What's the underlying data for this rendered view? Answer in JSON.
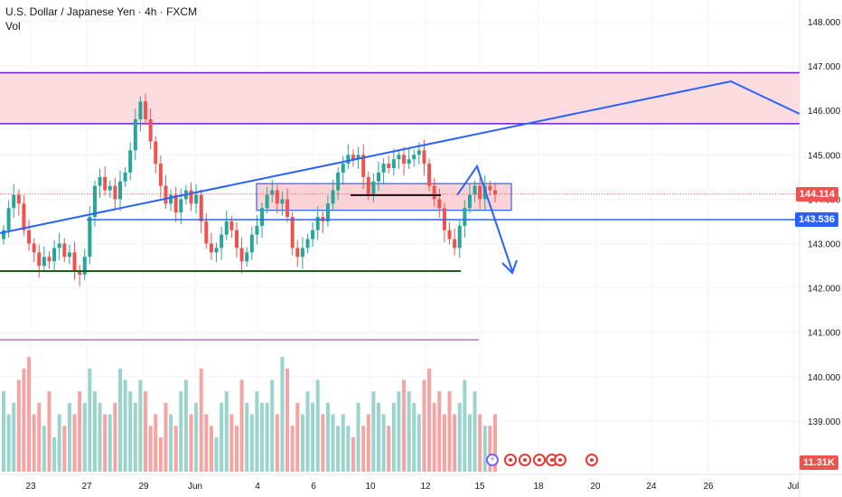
{
  "header": {
    "title": "U.S. Dollar / Japanese Yen · 4h · FXCM",
    "volume_label": "Vol"
  },
  "colors": {
    "up": "#26a69a",
    "down": "#ef5350",
    "up_volume": "#9bd3cd",
    "down_volume": "#f5a3a3",
    "drawing_blue": "#2962ff",
    "zone_fill": "#fbd3d6",
    "zone_border": "#6a1bd8",
    "price_badge": "#ef5350",
    "level_badge": "#2962ff",
    "volume_badge": "#ef5350"
  },
  "price_badges": {
    "last_price": "144.114",
    "support_level": "143.536",
    "volume_value": "11.31K"
  },
  "chart_data": {
    "type": "candlestick",
    "symbol": "USD/JPY",
    "timeframe": "4h",
    "x_ticks": [
      "23",
      "27",
      "29",
      "Jun",
      "4",
      "6",
      "10",
      "12",
      "15",
      "18",
      "20",
      "24",
      "26",
      "Jul"
    ],
    "y_ticks": [
      "148.000",
      "147.000",
      "146.000",
      "145.000",
      "144.000",
      "143.000",
      "142.000",
      "141.000",
      "140.000",
      "139.000"
    ],
    "ylim": [
      138.4,
      148.2
    ],
    "candles_close": [
      143.3,
      143.8,
      144.1,
      143.9,
      143.3,
      143.0,
      142.8,
      142.5,
      142.7,
      142.6,
      142.9,
      143.0,
      142.7,
      142.8,
      142.4,
      142.3,
      142.7,
      143.6,
      144.3,
      144.5,
      144.2,
      144.3,
      144.0,
      144.4,
      144.6,
      145.1,
      145.8,
      146.2,
      145.8,
      145.3,
      144.8,
      144.3,
      143.9,
      144.1,
      143.7,
      144.0,
      144.2,
      143.9,
      144.1,
      143.5,
      143.0,
      142.8,
      142.9,
      143.2,
      143.5,
      143.3,
      142.9,
      142.6,
      142.8,
      143.2,
      143.4,
      143.8,
      144.1,
      144.2,
      143.9,
      144.0,
      143.6,
      142.9,
      142.7,
      142.9,
      143.1,
      143.3,
      143.6,
      143.5,
      143.9,
      144.2,
      144.6,
      144.8,
      145.0,
      144.9,
      145.0,
      144.5,
      144.1,
      144.4,
      144.6,
      144.8,
      144.7,
      144.9,
      145.0,
      144.8,
      144.9,
      145.0,
      145.1,
      144.8,
      144.3,
      144.0,
      143.8,
      143.3,
      143.1,
      142.9,
      143.4,
      143.8,
      144.1,
      144.3,
      144.0,
      144.3,
      144.2,
      144.1
    ],
    "volume": [
      0.7,
      0.5,
      0.6,
      0.8,
      0.9,
      1.0,
      0.5,
      0.6,
      0.4,
      0.7,
      0.3,
      0.5,
      0.4,
      0.6,
      0.5,
      0.7,
      0.6,
      0.9,
      0.7,
      0.6,
      0.5,
      0.5,
      0.6,
      0.9,
      0.8,
      0.7,
      0.6,
      0.8,
      0.7,
      0.4,
      0.5,
      0.3,
      0.6,
      0.5,
      0.4,
      0.7,
      0.8,
      0.5,
      0.6,
      0.9,
      0.5,
      0.4,
      0.3,
      0.6,
      0.7,
      0.5,
      0.4,
      0.8,
      0.6,
      0.5,
      0.7,
      0.6,
      0.6,
      0.8,
      0.5,
      1.0,
      0.9,
      0.4,
      0.6,
      0.5,
      0.7,
      0.6,
      0.8,
      0.5,
      0.6,
      0.5,
      0.4,
      0.5,
      0.4,
      0.3,
      0.6,
      0.4,
      0.5,
      0.7,
      0.6,
      0.5,
      0.4,
      0.6,
      0.7,
      0.8,
      0.7,
      0.6,
      0.5,
      0.8,
      0.9,
      0.6,
      0.7,
      0.5,
      0.7,
      0.5,
      0.6,
      0.8,
      0.5,
      0.7,
      0.5,
      0.4,
      0.4,
      0.5
    ],
    "levels": {
      "resistance_zone": [
        145.7,
        146.85
      ],
      "consolidation_zone": [
        143.75,
        144.35
      ],
      "support_line": 143.536,
      "lower_support": 142.35,
      "last_price": 144.114
    },
    "legend": "none",
    "grid": true
  }
}
